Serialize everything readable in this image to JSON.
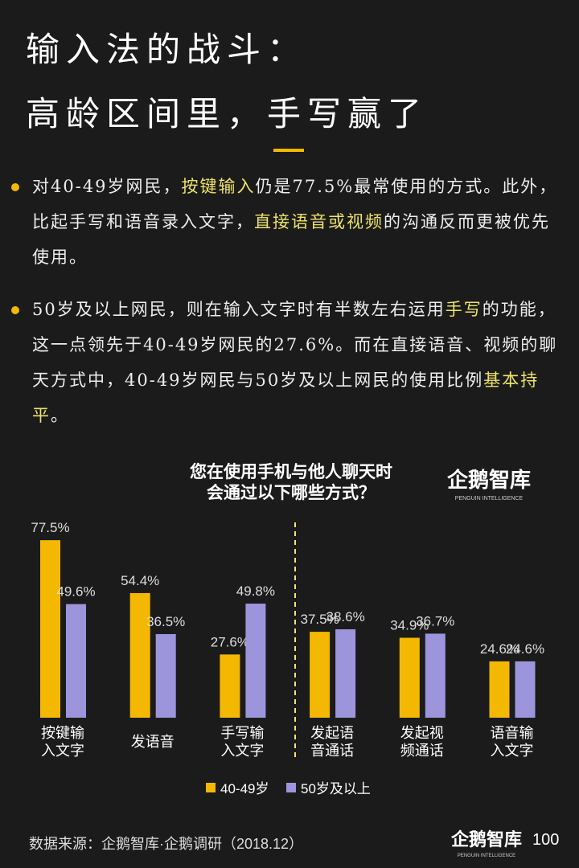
{
  "header": {
    "title_lines": [
      "输入法的战斗：",
      "高龄区间里，手写赢了"
    ]
  },
  "bullets": [
    {
      "segments": [
        {
          "text": "对40-49岁网民，",
          "highlight": false
        },
        {
          "text": "按键输入",
          "highlight": true
        },
        {
          "text": "仍是77.5%最常使用的方式。此外，比起手写和语音录入文字，",
          "highlight": false
        },
        {
          "text": "直接语音或视频",
          "highlight": true
        },
        {
          "text": "的沟通反而更被优先使用。",
          "highlight": false
        }
      ]
    },
    {
      "segments": [
        {
          "text": "50岁及以上网民，则在输入文字时有半数左右运用",
          "highlight": false
        },
        {
          "text": "手写",
          "highlight": true
        },
        {
          "text": "的功能，这一点领先于40-49岁网民的27.6%。而在直接语音、视频的聊天方式中，40-49岁网民与50岁及以上网民的使用比例",
          "highlight": false
        },
        {
          "text": "基本持平",
          "highlight": true
        },
        {
          "text": "。",
          "highlight": false
        }
      ]
    }
  ],
  "chart_data": {
    "type": "bar",
    "title_lines": [
      "您在使用手机与他人聊天时",
      "会通过以下哪些方式？"
    ],
    "categories": [
      "按键输\n入文字",
      "发语音",
      "手写输\n入文字",
      "发起语\n音通话",
      "发起视\n频通话",
      "语音输\n入文字"
    ],
    "series": [
      {
        "name": "40-49岁",
        "color": "#f5b800",
        "values": [
          77.5,
          54.4,
          27.6,
          37.5,
          34.9,
          24.6
        ],
        "value_labels": [
          "77.5%",
          "54.4%",
          "27.6%",
          "37.5%",
          "34.9%",
          "24.6%"
        ]
      },
      {
        "name": "50岁及以上",
        "color": "#9d95dc",
        "values": [
          49.6,
          36.5,
          49.8,
          38.6,
          36.7,
          24.6
        ],
        "value_labels": [
          "49.6%",
          "36.5%",
          "49.8%",
          "38.6%",
          "36.7%",
          "24.6%"
        ]
      }
    ]
  },
  "brand": {
    "name": "企鹅智库",
    "tagline": "PENGUIN INTELLIGENCE"
  },
  "source": "数据来源：企鹅智库·企鹅调研（2018.12）",
  "page_number": "100"
}
